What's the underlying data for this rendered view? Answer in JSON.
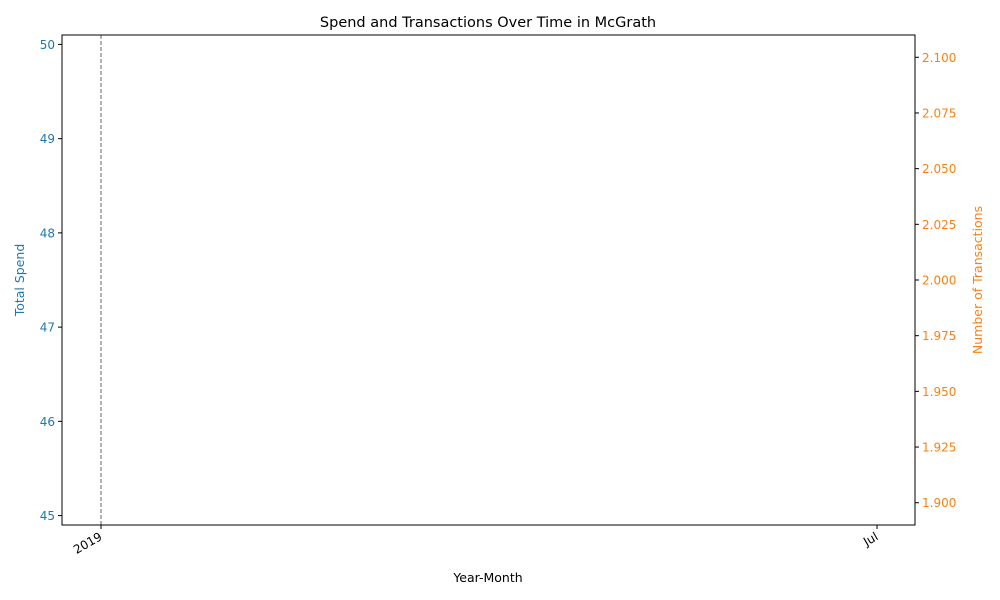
{
  "chart_data": {
    "type": "line",
    "title": "Spend and Transactions Over Time in McGrath",
    "xlabel": "Year-Month",
    "x_ticks": [
      "2019",
      "Jul"
    ],
    "ylabel_left": "Total Spend",
    "ylabel_right": "Number of Transactions",
    "y_left": {
      "lim": [
        44.9,
        50.1
      ],
      "ticks": [
        45,
        46,
        47,
        48,
        49,
        50
      ]
    },
    "y_right": {
      "lim": [
        1.89,
        2.11
      ],
      "ticks": [
        "1.900",
        "1.925",
        "1.950",
        "1.975",
        "2.000",
        "2.025",
        "2.050",
        "2.075",
        "2.100"
      ]
    },
    "grid": false,
    "vertical_marker_at": "2019",
    "colors": {
      "left_axis": "#1f77b4",
      "right_axis": "#ff7f0e",
      "marker_line": "#808080",
      "text": "#000000"
    }
  }
}
